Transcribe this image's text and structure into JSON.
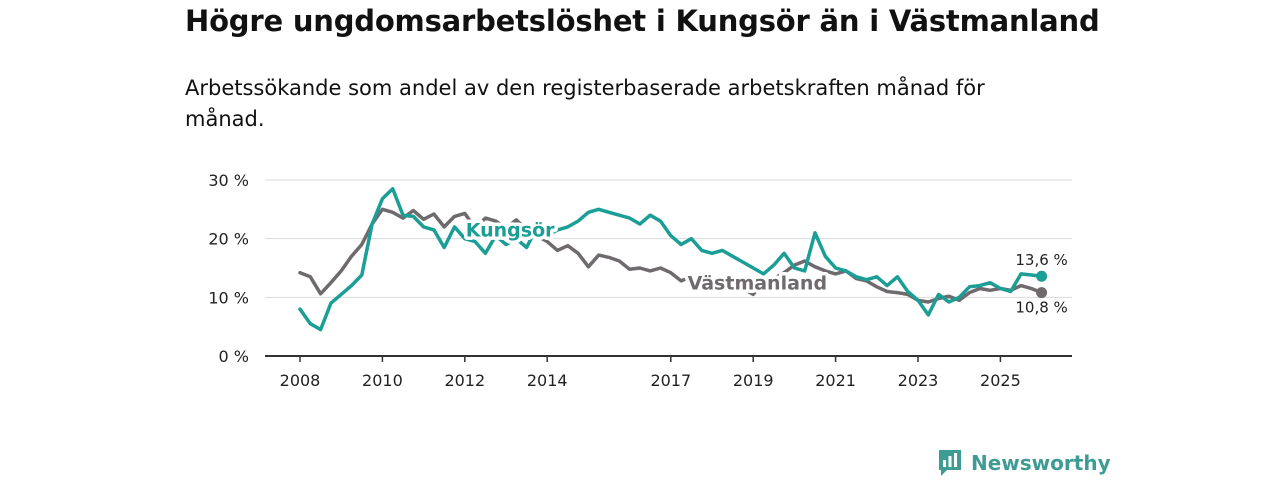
{
  "title": "Högre ungdomsarbetslöshet i Kungsör än i Västmanland",
  "subtitle": "Arbetssökande som andel av den registerbaserade arbetskraften månad för månad.",
  "brand": {
    "name": "Newsworthy",
    "color": "#3f9c95"
  },
  "chart_data": {
    "type": "line",
    "ylim": [
      0,
      30
    ],
    "xlim": [
      2008.0,
      2026.25
    ],
    "y_ticks": [
      {
        "value": 0,
        "label": "0 %"
      },
      {
        "value": 10,
        "label": "10 %"
      },
      {
        "value": 20,
        "label": "20 %"
      },
      {
        "value": 30,
        "label": "30 %"
      }
    ],
    "x_ticks": [
      {
        "value": 2008,
        "label": "2008"
      },
      {
        "value": 2010,
        "label": "2010"
      },
      {
        "value": 2012,
        "label": "2012"
      },
      {
        "value": 2014,
        "label": "2014"
      },
      {
        "value": 2017,
        "label": "2017"
      },
      {
        "value": 2019,
        "label": "2019"
      },
      {
        "value": 2021,
        "label": "2021"
      },
      {
        "value": 2023,
        "label": "2023"
      },
      {
        "value": 2025,
        "label": "2025"
      }
    ],
    "series": [
      {
        "name": "Västmanland",
        "color": "#6e6a6d",
        "end_label": "10,8 %",
        "points": [
          [
            2008.0,
            14.2
          ],
          [
            2008.25,
            13.5
          ],
          [
            2008.5,
            10.6
          ],
          [
            2008.75,
            12.5
          ],
          [
            2009.0,
            14.5
          ],
          [
            2009.25,
            17.0
          ],
          [
            2009.5,
            19.0
          ],
          [
            2009.75,
            22.5
          ],
          [
            2010.0,
            25.0
          ],
          [
            2010.25,
            24.5
          ],
          [
            2010.5,
            23.5
          ],
          [
            2010.75,
            24.8
          ],
          [
            2011.0,
            23.3
          ],
          [
            2011.25,
            24.2
          ],
          [
            2011.5,
            22.0
          ],
          [
            2011.75,
            23.8
          ],
          [
            2012.0,
            24.3
          ],
          [
            2012.25,
            21.8
          ],
          [
            2012.5,
            23.5
          ],
          [
            2012.75,
            23.0
          ],
          [
            2013.0,
            21.8
          ],
          [
            2013.25,
            23.2
          ],
          [
            2013.5,
            21.5
          ],
          [
            2013.75,
            20.5
          ],
          [
            2014.0,
            19.5
          ],
          [
            2014.25,
            18.0
          ],
          [
            2014.5,
            18.8
          ],
          [
            2014.75,
            17.5
          ],
          [
            2015.0,
            15.2
          ],
          [
            2015.25,
            17.2
          ],
          [
            2015.5,
            16.8
          ],
          [
            2015.75,
            16.2
          ],
          [
            2016.0,
            14.8
          ],
          [
            2016.25,
            15.0
          ],
          [
            2016.5,
            14.5
          ],
          [
            2016.75,
            15.0
          ],
          [
            2017.0,
            14.2
          ],
          [
            2017.25,
            12.8
          ],
          [
            2017.5,
            13.5
          ],
          [
            2017.75,
            12.8
          ],
          [
            2018.0,
            11.8
          ],
          [
            2018.25,
            11.2
          ],
          [
            2018.5,
            11.8
          ],
          [
            2018.75,
            11.5
          ],
          [
            2019.0,
            10.5
          ],
          [
            2019.25,
            12.5
          ],
          [
            2019.5,
            13.2
          ],
          [
            2019.75,
            14.2
          ],
          [
            2020.0,
            15.5
          ],
          [
            2020.25,
            16.2
          ],
          [
            2020.5,
            15.2
          ],
          [
            2020.75,
            14.5
          ],
          [
            2021.0,
            14.0
          ],
          [
            2021.25,
            14.5
          ],
          [
            2021.5,
            13.2
          ],
          [
            2021.75,
            12.8
          ],
          [
            2022.0,
            11.8
          ],
          [
            2022.25,
            11.0
          ],
          [
            2022.5,
            10.8
          ],
          [
            2022.75,
            10.5
          ],
          [
            2023.0,
            9.5
          ],
          [
            2023.25,
            9.2
          ],
          [
            2023.5,
            9.8
          ],
          [
            2023.75,
            10.2
          ],
          [
            2024.0,
            9.5
          ],
          [
            2024.25,
            10.8
          ],
          [
            2024.5,
            11.5
          ],
          [
            2024.75,
            11.2
          ],
          [
            2025.0,
            11.5
          ],
          [
            2025.25,
            11.2
          ],
          [
            2025.5,
            12.0
          ],
          [
            2025.75,
            11.5
          ],
          [
            2026.0,
            10.8
          ]
        ]
      },
      {
        "name": "Kungsör",
        "color": "#1a9e96",
        "end_label": "13,6 %",
        "points": [
          [
            2008.0,
            8.0
          ],
          [
            2008.25,
            5.5
          ],
          [
            2008.5,
            4.5
          ],
          [
            2008.75,
            9.0
          ],
          [
            2009.0,
            10.5
          ],
          [
            2009.25,
            12.0
          ],
          [
            2009.5,
            13.8
          ],
          [
            2009.75,
            22.5
          ],
          [
            2010.0,
            26.8
          ],
          [
            2010.25,
            28.5
          ],
          [
            2010.5,
            24.0
          ],
          [
            2010.75,
            23.8
          ],
          [
            2011.0,
            22.0
          ],
          [
            2011.25,
            21.5
          ],
          [
            2011.5,
            18.5
          ],
          [
            2011.75,
            22.0
          ],
          [
            2012.0,
            20.0
          ],
          [
            2012.25,
            19.5
          ],
          [
            2012.5,
            17.5
          ],
          [
            2012.75,
            20.5
          ],
          [
            2013.0,
            19.0
          ],
          [
            2013.25,
            20.0
          ],
          [
            2013.5,
            18.5
          ],
          [
            2013.75,
            22.0
          ],
          [
            2014.0,
            20.5
          ],
          [
            2014.25,
            21.5
          ],
          [
            2014.5,
            22.0
          ],
          [
            2014.75,
            23.0
          ],
          [
            2015.0,
            24.5
          ],
          [
            2015.25,
            25.0
          ],
          [
            2015.5,
            24.5
          ],
          [
            2015.75,
            24.0
          ],
          [
            2016.0,
            23.5
          ],
          [
            2016.25,
            22.5
          ],
          [
            2016.5,
            24.0
          ],
          [
            2016.75,
            23.0
          ],
          [
            2017.0,
            20.5
          ],
          [
            2017.25,
            19.0
          ],
          [
            2017.5,
            20.0
          ],
          [
            2017.75,
            18.0
          ],
          [
            2018.0,
            17.5
          ],
          [
            2018.25,
            18.0
          ],
          [
            2018.5,
            17.0
          ],
          [
            2018.75,
            16.0
          ],
          [
            2019.0,
            15.0
          ],
          [
            2019.25,
            14.0
          ],
          [
            2019.5,
            15.5
          ],
          [
            2019.75,
            17.5
          ],
          [
            2020.0,
            15.0
          ],
          [
            2020.25,
            14.5
          ],
          [
            2020.5,
            21.0
          ],
          [
            2020.75,
            17.0
          ],
          [
            2021.0,
            15.0
          ],
          [
            2021.25,
            14.5
          ],
          [
            2021.5,
            13.5
          ],
          [
            2021.75,
            13.0
          ],
          [
            2022.0,
            13.5
          ],
          [
            2022.25,
            12.0
          ],
          [
            2022.5,
            13.5
          ],
          [
            2022.75,
            11.0
          ],
          [
            2023.0,
            9.5
          ],
          [
            2023.25,
            7.0
          ],
          [
            2023.5,
            10.5
          ],
          [
            2023.75,
            9.2
          ],
          [
            2024.0,
            10.0
          ],
          [
            2024.25,
            11.8
          ],
          [
            2024.5,
            12.0
          ],
          [
            2024.75,
            12.5
          ],
          [
            2025.0,
            11.5
          ],
          [
            2025.25,
            11.0
          ],
          [
            2025.5,
            14.0
          ],
          [
            2025.75,
            13.8
          ],
          [
            2026.0,
            13.6
          ]
        ]
      }
    ]
  }
}
